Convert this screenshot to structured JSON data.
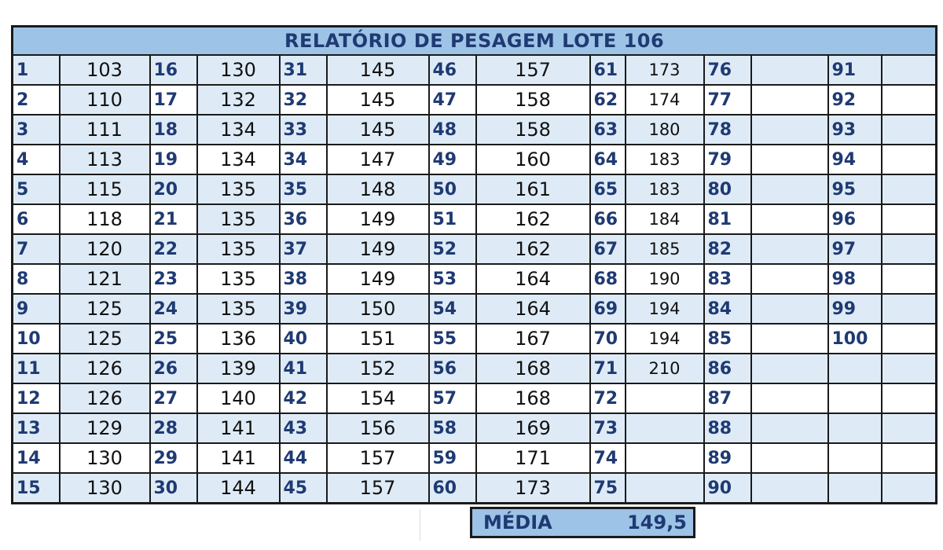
{
  "title": "RELATÓRIO DE PESAGEM LOTE 106",
  "columns": [
    {
      "ids": [
        "1",
        "2",
        "3",
        "4",
        "5",
        "6",
        "7",
        "8",
        "9",
        "10",
        "11",
        "12",
        "13",
        "14",
        "15"
      ],
      "weights": [
        "103",
        "110",
        "111",
        "113",
        "115",
        "118",
        "120",
        "121",
        "125",
        "125",
        "126",
        "126",
        "129",
        "130",
        "130"
      ]
    },
    {
      "ids": [
        "16",
        "17",
        "18",
        "19",
        "20",
        "21",
        "22",
        "23",
        "24",
        "25",
        "26",
        "27",
        "28",
        "29",
        "30"
      ],
      "weights": [
        "130",
        "132",
        "134",
        "134",
        "135",
        "135",
        "135",
        "135",
        "135",
        "136",
        "139",
        "140",
        "141",
        "141",
        "144"
      ]
    },
    {
      "ids": [
        "31",
        "32",
        "33",
        "34",
        "35",
        "36",
        "37",
        "38",
        "39",
        "40",
        "41",
        "42",
        "43",
        "44",
        "45"
      ],
      "weights": [
        "145",
        "145",
        "145",
        "147",
        "148",
        "149",
        "149",
        "149",
        "150",
        "151",
        "152",
        "154",
        "156",
        "157",
        "157"
      ]
    },
    {
      "ids": [
        "46",
        "47",
        "48",
        "49",
        "50",
        "51",
        "52",
        "53",
        "54",
        "55",
        "56",
        "57",
        "58",
        "59",
        "60"
      ],
      "weights": [
        "157",
        "158",
        "158",
        "160",
        "161",
        "162",
        "162",
        "164",
        "164",
        "167",
        "168",
        "168",
        "169",
        "171",
        "173"
      ]
    },
    {
      "ids": [
        "61",
        "62",
        "63",
        "64",
        "65",
        "66",
        "67",
        "68",
        "69",
        "70",
        "71",
        "72",
        "73",
        "74",
        "75"
      ],
      "weights": [
        "173",
        "174",
        "180",
        "183",
        "183",
        "184",
        "185",
        "190",
        "194",
        "194",
        "210",
        "",
        "",
        "",
        ""
      ]
    },
    {
      "ids": [
        "76",
        "77",
        "78",
        "79",
        "80",
        "81",
        "82",
        "83",
        "84",
        "85",
        "86",
        "87",
        "88",
        "89",
        "90"
      ],
      "weights": [
        "",
        "",
        "",
        "",
        "",
        "",
        "",
        "",
        "",
        "",
        "",
        "",
        "",
        "",
        ""
      ]
    },
    {
      "ids": [
        "91",
        "92",
        "93",
        "94",
        "95",
        "96",
        "97",
        "98",
        "99",
        "100",
        "",
        "",
        "",
        "",
        ""
      ],
      "weights": [
        "",
        "",
        "",
        "",
        "",
        "",
        "",
        "",
        "",
        "",
        "",
        "",
        "",
        "",
        ""
      ]
    }
  ],
  "summary": {
    "label": "MÉDIA",
    "value": "149,5"
  },
  "colors": {
    "header_bg": "#9dc3e6",
    "row_band": "#deebf7",
    "id_text": "#1f3a73",
    "border": "#1a1a1a"
  }
}
